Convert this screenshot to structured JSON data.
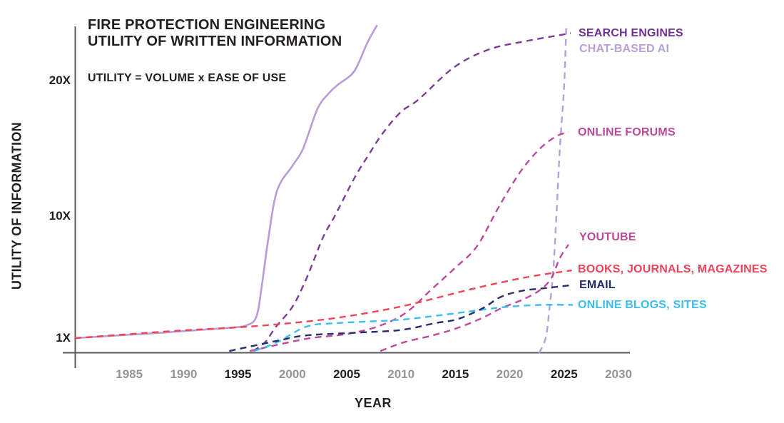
{
  "header": {
    "title_line1": "FIRE PROTECTION ENGINEERING",
    "title_line2": "UTILITY OF WRITTEN INFORMATION",
    "subtitle": "UTILITY = VOLUME x EASE OF USE"
  },
  "chart_data": {
    "type": "line",
    "title": "FIRE PROTECTION ENGINEERING UTILITY OF WRITTEN INFORMATION",
    "subtitle": "UTILITY = VOLUME x EASE OF USE",
    "xlabel": "YEAR",
    "ylabel": "UTILITY OF INFORMATION",
    "xlim": [
      1980,
      2031
    ],
    "ylim": [
      0,
      24.5
    ],
    "grid": false,
    "legend_position": "labels-at-line-ends-right",
    "axis_color": "#58595b",
    "tick_colors": {
      "emphasis": "#231f20",
      "muted": "#939598"
    },
    "xticks": [
      {
        "label": "1985",
        "year": 1985,
        "emphasis": false
      },
      {
        "label": "1990",
        "year": 1990,
        "emphasis": false
      },
      {
        "label": "1995",
        "year": 1995,
        "emphasis": true
      },
      {
        "label": "2000",
        "year": 2000,
        "emphasis": false
      },
      {
        "label": "2005",
        "year": 2005,
        "emphasis": true
      },
      {
        "label": "2010",
        "year": 2010,
        "emphasis": false
      },
      {
        "label": "2015",
        "year": 2015,
        "emphasis": true
      },
      {
        "label": "2020",
        "year": 2020,
        "emphasis": false
      },
      {
        "label": "2025",
        "year": 2025,
        "emphasis": true
      },
      {
        "label": "2030",
        "year": 2030,
        "emphasis": false
      }
    ],
    "yticks": [
      {
        "label": "1X",
        "value": 1
      },
      {
        "label": "10X",
        "value": 10
      },
      {
        "label": "20X",
        "value": 20
      }
    ],
    "series": [
      {
        "id": "unlabeled-solid-curve",
        "name": "",
        "color": "#b89cd6",
        "style": "solid",
        "points": [
          [
            1980,
            1.0
          ],
          [
            1988,
            1.4
          ],
          [
            1994,
            1.75
          ],
          [
            1995.8,
            1.95
          ],
          [
            1996.7,
            2.6
          ],
          [
            1997.2,
            4.9
          ],
          [
            1997.8,
            8.4
          ],
          [
            1998.6,
            11.9
          ],
          [
            2000,
            13.7
          ],
          [
            2001,
            15.0
          ],
          [
            2002.3,
            17.9
          ],
          [
            2003.4,
            19.1
          ],
          [
            2004.2,
            19.7
          ],
          [
            2005.7,
            20.7
          ],
          [
            2006.9,
            22.8
          ],
          [
            2007.8,
            24.1
          ]
        ]
      },
      {
        "id": "search-engines",
        "name": "SEARCH ENGINES",
        "color": "#7b3e98",
        "label_color": "#6f3193",
        "style": "dashed",
        "points": [
          [
            1996.4,
            0.05
          ],
          [
            1997.5,
            0.7
          ],
          [
            1998.5,
            1.85
          ],
          [
            2000,
            3.3
          ],
          [
            2001.3,
            5.4
          ],
          [
            2002.8,
            8.4
          ],
          [
            2003.9,
            10.0
          ],
          [
            2005.7,
            12.8
          ],
          [
            2007,
            14.5
          ],
          [
            2008.3,
            16.1
          ],
          [
            2010,
            17.7
          ],
          [
            2011.6,
            18.6
          ],
          [
            2014.9,
            21.0
          ],
          [
            2018.1,
            22.3
          ],
          [
            2021.4,
            22.9
          ],
          [
            2025.6,
            23.5
          ]
        ]
      },
      {
        "id": "chat-based-ai",
        "name": "CHAT-BASED AI",
        "color": "#b5a1d4",
        "label_color": "#b5a1d4",
        "style": "dashed",
        "points": [
          [
            2022.7,
            -0.1
          ],
          [
            2023.3,
            1.0
          ],
          [
            2023.6,
            2.8
          ],
          [
            2024.0,
            6.0
          ],
          [
            2024.3,
            10.2
          ],
          [
            2024.6,
            14.9
          ],
          [
            2025.0,
            19.6
          ],
          [
            2025.2,
            24.0
          ]
        ]
      },
      {
        "id": "online-forums",
        "name": "ONLINE FORUMS",
        "color": "#bc4a9c",
        "label_color": "#bc4a9c",
        "style": "dashed",
        "points": [
          [
            1996.1,
            0.05
          ],
          [
            2001.3,
            0.95
          ],
          [
            2005,
            1.3
          ],
          [
            2008,
            1.9
          ],
          [
            2010.5,
            2.9
          ],
          [
            2012.8,
            4.6
          ],
          [
            2015,
            6.2
          ],
          [
            2017,
            7.8
          ],
          [
            2019,
            10.7
          ],
          [
            2021,
            13.3
          ],
          [
            2022.8,
            15.0
          ],
          [
            2024.3,
            15.9
          ],
          [
            2025.4,
            16.2
          ]
        ]
      },
      {
        "id": "youtube",
        "name": "YOUTUBE",
        "color": "#bc4a9c",
        "label_color": "#bc4a9c",
        "style": "dashed",
        "points": [
          [
            2008.1,
            0.05
          ],
          [
            2010.3,
            0.7
          ],
          [
            2012.9,
            1.2
          ],
          [
            2015.2,
            1.75
          ],
          [
            2017.5,
            2.5
          ],
          [
            2019.2,
            3.2
          ],
          [
            2021.2,
            3.85
          ],
          [
            2022.7,
            4.5
          ],
          [
            2023.8,
            5.4
          ],
          [
            2024.6,
            6.9
          ],
          [
            2025.4,
            7.9
          ]
        ]
      },
      {
        "id": "online-blogs",
        "name": "ONLINE BLOGS, SITES",
        "color": "#3bbef0",
        "label_color": "#3bbef0",
        "style": "dashed",
        "points": [
          [
            1996.5,
            0.05
          ],
          [
            1998.6,
            0.7
          ],
          [
            2001.3,
            1.85
          ],
          [
            2003.9,
            2.1
          ],
          [
            2009.8,
            2.35
          ],
          [
            2014.2,
            2.75
          ],
          [
            2017.5,
            3.1
          ],
          [
            2019.7,
            3.3
          ],
          [
            2022.8,
            3.45
          ],
          [
            2025.8,
            3.45
          ]
        ]
      },
      {
        "id": "email",
        "name": "EMAIL",
        "color": "#232e6b",
        "label_color": "#232e6b",
        "style": "dashed",
        "points": [
          [
            1994.2,
            0.05
          ],
          [
            1998.6,
            0.8
          ],
          [
            2001.3,
            1.2
          ],
          [
            2005.9,
            1.4
          ],
          [
            2010,
            1.6
          ],
          [
            2013.1,
            2.1
          ],
          [
            2015.2,
            2.4
          ],
          [
            2017.5,
            3.2
          ],
          [
            2019.2,
            4.05
          ],
          [
            2021.2,
            4.5
          ],
          [
            2023.4,
            4.7
          ],
          [
            2025.6,
            4.9
          ]
        ]
      },
      {
        "id": "books",
        "name": "BOOKS, JOURNALS, MAGAZINES",
        "color": "#ef4358",
        "label_color": "#ef4358",
        "style": "dashed",
        "points": [
          [
            1980,
            1.0
          ],
          [
            1989.5,
            1.55
          ],
          [
            1996,
            1.85
          ],
          [
            2003.2,
            2.4
          ],
          [
            2009.8,
            3.3
          ],
          [
            2016.4,
            4.6
          ],
          [
            2021.6,
            5.5
          ],
          [
            2025.7,
            6.0
          ]
        ]
      }
    ]
  }
}
